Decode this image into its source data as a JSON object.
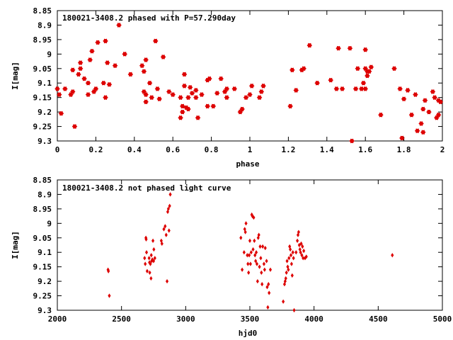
{
  "chart_data": [
    {
      "type": "scatter",
      "title": "180021-3408.2 phased with P=57.290day",
      "xlabel": "phase",
      "ylabel": "I[mag]",
      "xlim": [
        0,
        2
      ],
      "ylim": [
        9.3,
        8.85
      ],
      "y_inverted": true,
      "grid": false,
      "marker_color": "#dd0000",
      "x_ticks": [
        "0",
        "0.2",
        "0.4",
        "0.6",
        "0.8",
        "1",
        "1.2",
        "1.4",
        "1.6",
        "1.8",
        "2"
      ],
      "y_ticks": [
        "8.85",
        "8.9",
        "8.95",
        "9",
        "9.05",
        "9.1",
        "9.15",
        "9.2",
        "9.25",
        "9.3"
      ],
      "points": [
        [
          0.0,
          9.12
        ],
        [
          0.01,
          9.14
        ],
        [
          0.02,
          9.205
        ],
        [
          0.04,
          9.12
        ],
        [
          0.07,
          9.14
        ],
        [
          0.08,
          9.13
        ],
        [
          0.08,
          9.055
        ],
        [
          0.09,
          9.25
        ],
        [
          0.11,
          9.07
        ],
        [
          0.12,
          9.03
        ],
        [
          0.12,
          9.05
        ],
        [
          0.14,
          9.085
        ],
        [
          0.16,
          9.1
        ],
        [
          0.16,
          9.14
        ],
        [
          0.17,
          9.02
        ],
        [
          0.18,
          8.99
        ],
        [
          0.19,
          9.13
        ],
        [
          0.2,
          9.12
        ],
        [
          0.21,
          8.96
        ],
        [
          0.24,
          9.1
        ],
        [
          0.25,
          8.955
        ],
        [
          0.25,
          9.15
        ],
        [
          0.26,
          9.03
        ],
        [
          0.27,
          9.105
        ],
        [
          0.3,
          9.04
        ],
        [
          0.32,
          8.9
        ],
        [
          0.35,
          9.0
        ],
        [
          0.38,
          9.07
        ],
        [
          0.44,
          9.04
        ],
        [
          0.45,
          9.06
        ],
        [
          0.45,
          9.13
        ],
        [
          0.46,
          9.02
        ],
        [
          0.46,
          9.14
        ],
        [
          0.46,
          9.165
        ],
        [
          0.48,
          9.1
        ],
        [
          0.49,
          9.15
        ],
        [
          0.51,
          8.955
        ],
        [
          0.52,
          9.12
        ],
        [
          0.53,
          9.155
        ],
        [
          0.55,
          9.01
        ],
        [
          0.58,
          9.13
        ],
        [
          0.6,
          9.14
        ],
        [
          0.64,
          9.15
        ],
        [
          0.64,
          9.22
        ],
        [
          0.65,
          9.18
        ],
        [
          0.65,
          9.2
        ],
        [
          0.66,
          9.07
        ],
        [
          0.66,
          9.11
        ],
        [
          0.67,
          9.185
        ],
        [
          0.68,
          9.15
        ],
        [
          0.68,
          9.19
        ],
        [
          0.69,
          9.115
        ],
        [
          0.7,
          9.135
        ],
        [
          0.72,
          9.125
        ],
        [
          0.72,
          9.15
        ],
        [
          0.73,
          9.22
        ],
        [
          0.75,
          9.14
        ],
        [
          0.78,
          9.09
        ],
        [
          0.78,
          9.18
        ],
        [
          0.79,
          9.085
        ],
        [
          0.81,
          9.18
        ],
        [
          0.83,
          9.135
        ],
        [
          0.85,
          9.085
        ],
        [
          0.87,
          9.13
        ],
        [
          0.88,
          9.12
        ],
        [
          0.88,
          9.15
        ],
        [
          0.92,
          9.12
        ],
        [
          0.95,
          9.2
        ],
        [
          0.96,
          9.19
        ],
        [
          0.98,
          9.15
        ],
        [
          1.0,
          9.14
        ],
        [
          1.01,
          9.11
        ],
        [
          1.05,
          9.15
        ],
        [
          1.06,
          9.13
        ],
        [
          1.07,
          9.11
        ],
        [
          1.21,
          9.18
        ],
        [
          1.22,
          9.055
        ],
        [
          1.24,
          9.125
        ],
        [
          1.27,
          9.055
        ],
        [
          1.28,
          9.05
        ],
        [
          1.31,
          8.97
        ],
        [
          1.35,
          9.1
        ],
        [
          1.42,
          9.09
        ],
        [
          1.45,
          9.12
        ],
        [
          1.46,
          8.98
        ],
        [
          1.48,
          9.12
        ],
        [
          1.52,
          8.98
        ],
        [
          1.53,
          9.3
        ],
        [
          1.55,
          9.12
        ],
        [
          1.56,
          9.05
        ],
        [
          1.58,
          9.12
        ],
        [
          1.59,
          9.1
        ],
        [
          1.6,
          8.985
        ],
        [
          1.6,
          9.05
        ],
        [
          1.61,
          9.06
        ],
        [
          1.61,
          9.075
        ],
        [
          1.6,
          9.12
        ],
        [
          1.62,
          9.06
        ],
        [
          1.63,
          9.045
        ],
        [
          1.68,
          9.21
        ],
        [
          1.75,
          9.05
        ],
        [
          1.78,
          9.12
        ],
        [
          1.79,
          9.29
        ],
        [
          1.8,
          9.155
        ],
        [
          1.82,
          9.125
        ],
        [
          1.84,
          9.21
        ],
        [
          1.86,
          9.14
        ],
        [
          1.87,
          9.265
        ],
        [
          1.89,
          9.24
        ],
        [
          1.9,
          9.27
        ],
        [
          1.9,
          9.19
        ],
        [
          1.91,
          9.16
        ],
        [
          1.93,
          9.2
        ],
        [
          1.95,
          9.13
        ],
        [
          1.96,
          9.15
        ],
        [
          1.97,
          9.22
        ],
        [
          1.98,
          9.16
        ],
        [
          1.98,
          9.21
        ],
        [
          1.99,
          9.165
        ]
      ]
    },
    {
      "type": "scatter",
      "title": "180021-3408.2 not phased light curve",
      "xlabel": "hjd0",
      "ylabel": "I[mag]",
      "xlim": [
        2000,
        5000
      ],
      "ylim": [
        9.3,
        8.85
      ],
      "y_inverted": true,
      "grid": false,
      "marker_color": "#dd0000",
      "x_ticks": [
        "2000",
        "2500",
        "3000",
        "3500",
        "4000",
        "4500",
        "5000"
      ],
      "y_ticks": [
        "8.85",
        "8.9",
        "8.95",
        "9",
        "9.05",
        "9.1",
        "9.15",
        "9.2",
        "9.25",
        "9.3"
      ],
      "points": [
        [
          2395,
          9.16
        ],
        [
          2398,
          9.165
        ],
        [
          2405,
          9.25
        ],
        [
          2680,
          9.12
        ],
        [
          2685,
          9.14
        ],
        [
          2690,
          9.05
        ],
        [
          2692,
          9.055
        ],
        [
          2695,
          9.1
        ],
        [
          2700,
          9.165
        ],
        [
          2715,
          9.12
        ],
        [
          2718,
          9.135
        ],
        [
          2720,
          9.17
        ],
        [
          2725,
          9.14
        ],
        [
          2730,
          9.19
        ],
        [
          2732,
          9.11
        ],
        [
          2735,
          9.13
        ],
        [
          2740,
          9.125
        ],
        [
          2745,
          9.06
        ],
        [
          2750,
          9.13
        ],
        [
          2752,
          9.09
        ],
        [
          2760,
          9.12
        ],
        [
          2810,
          9.06
        ],
        [
          2815,
          9.07
        ],
        [
          2830,
          9.02
        ],
        [
          2840,
          9.01
        ],
        [
          2848,
          9.04
        ],
        [
          2855,
          9.2
        ],
        [
          2860,
          8.96
        ],
        [
          2865,
          8.95
        ],
        [
          2870,
          9.025
        ],
        [
          2875,
          8.94
        ],
        [
          2880,
          8.9
        ],
        [
          3430,
          9.05
        ],
        [
          3440,
          9.16
        ],
        [
          3455,
          9.1
        ],
        [
          3460,
          9.02
        ],
        [
          3465,
          9.03
        ],
        [
          3470,
          9.0
        ],
        [
          3480,
          9.11
        ],
        [
          3485,
          9.14
        ],
        [
          3490,
          9.17
        ],
        [
          3495,
          9.11
        ],
        [
          3500,
          9.06
        ],
        [
          3505,
          9.14
        ],
        [
          3510,
          9.1
        ],
        [
          3515,
          8.97
        ],
        [
          3520,
          8.975
        ],
        [
          3525,
          9.09
        ],
        [
          3530,
          8.98
        ],
        [
          3535,
          9.06
        ],
        [
          3540,
          9.11
        ],
        [
          3545,
          9.13
        ],
        [
          3550,
          9.1
        ],
        [
          3555,
          9.14
        ],
        [
          3560,
          9.2
        ],
        [
          3565,
          9.05
        ],
        [
          3570,
          9.04
        ],
        [
          3575,
          9.15
        ],
        [
          3580,
          9.08
        ],
        [
          3585,
          9.12
        ],
        [
          3590,
          9.17
        ],
        [
          3595,
          9.21
        ],
        [
          3600,
          9.08
        ],
        [
          3610,
          9.14
        ],
        [
          3615,
          9.16
        ],
        [
          3620,
          9.085
        ],
        [
          3630,
          9.13
        ],
        [
          3635,
          9.22
        ],
        [
          3640,
          9.29
        ],
        [
          3645,
          9.21
        ],
        [
          3650,
          9.24
        ],
        [
          3660,
          9.16
        ],
        [
          3760,
          9.27
        ],
        [
          3770,
          9.21
        ],
        [
          3775,
          9.2
        ],
        [
          3780,
          9.19
        ],
        [
          3785,
          9.17
        ],
        [
          3790,
          9.13
        ],
        [
          3795,
          9.15
        ],
        [
          3800,
          9.16
        ],
        [
          3805,
          9.12
        ],
        [
          3810,
          9.08
        ],
        [
          3815,
          9.09
        ],
        [
          3820,
          9.11
        ],
        [
          3825,
          9.14
        ],
        [
          3830,
          9.18
        ],
        [
          3835,
          9.1
        ],
        [
          3840,
          9.12
        ],
        [
          3845,
          9.3
        ],
        [
          3860,
          9.1
        ],
        [
          3870,
          9.06
        ],
        [
          3875,
          9.04
        ],
        [
          3880,
          9.03
        ],
        [
          3885,
          9.075
        ],
        [
          3890,
          9.09
        ],
        [
          3895,
          9.1
        ],
        [
          3900,
          9.07
        ],
        [
          3905,
          9.11
        ],
        [
          3910,
          9.08
        ],
        [
          3915,
          9.12
        ],
        [
          3920,
          9.095
        ],
        [
          3930,
          9.12
        ],
        [
          3940,
          9.115
        ],
        [
          4610,
          9.11
        ]
      ]
    }
  ]
}
